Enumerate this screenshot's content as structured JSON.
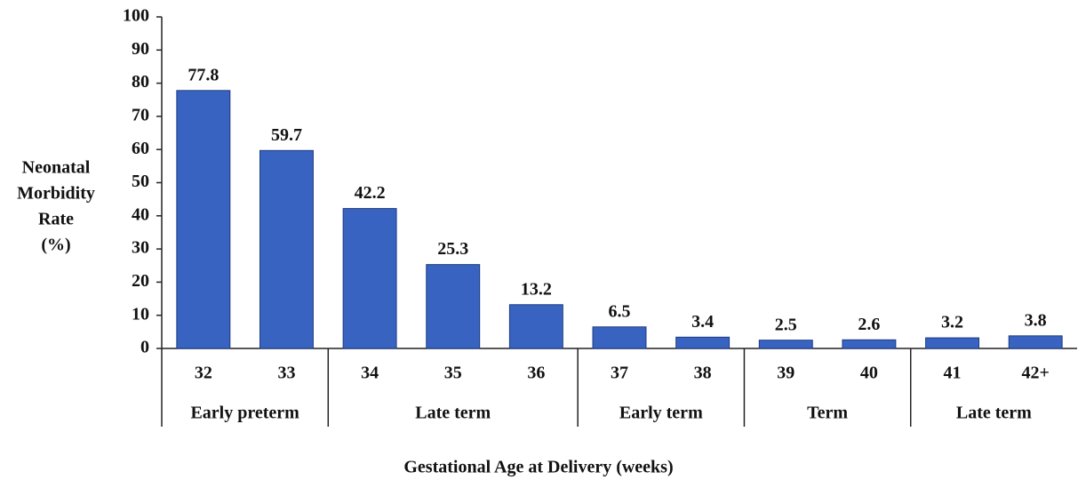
{
  "chart_data": {
    "type": "bar",
    "ylabel": [
      "Neonatal",
      "Morbidity",
      "Rate",
      "(%)"
    ],
    "xlabel": "Gestational Age at Delivery (weeks)",
    "categories": [
      "32",
      "33",
      "34",
      "35",
      "36",
      "37",
      "38",
      "39",
      "40",
      "41",
      "42+"
    ],
    "values": [
      77.8,
      59.7,
      42.2,
      25.3,
      13.2,
      6.5,
      3.4,
      2.5,
      2.6,
      3.2,
      3.8
    ],
    "groups": [
      {
        "label": "Early preterm",
        "size": 2
      },
      {
        "label": "Late term",
        "size": 3
      },
      {
        "label": "Early term",
        "size": 2
      },
      {
        "label": "Term",
        "size": 2
      },
      {
        "label": "Late term",
        "size": 2
      }
    ],
    "color": "#3863c1",
    "ylim": [
      0,
      100
    ],
    "yticks": [
      0,
      10,
      20,
      30,
      40,
      50,
      60,
      70,
      80,
      90,
      100
    ],
    "grid": false
  }
}
